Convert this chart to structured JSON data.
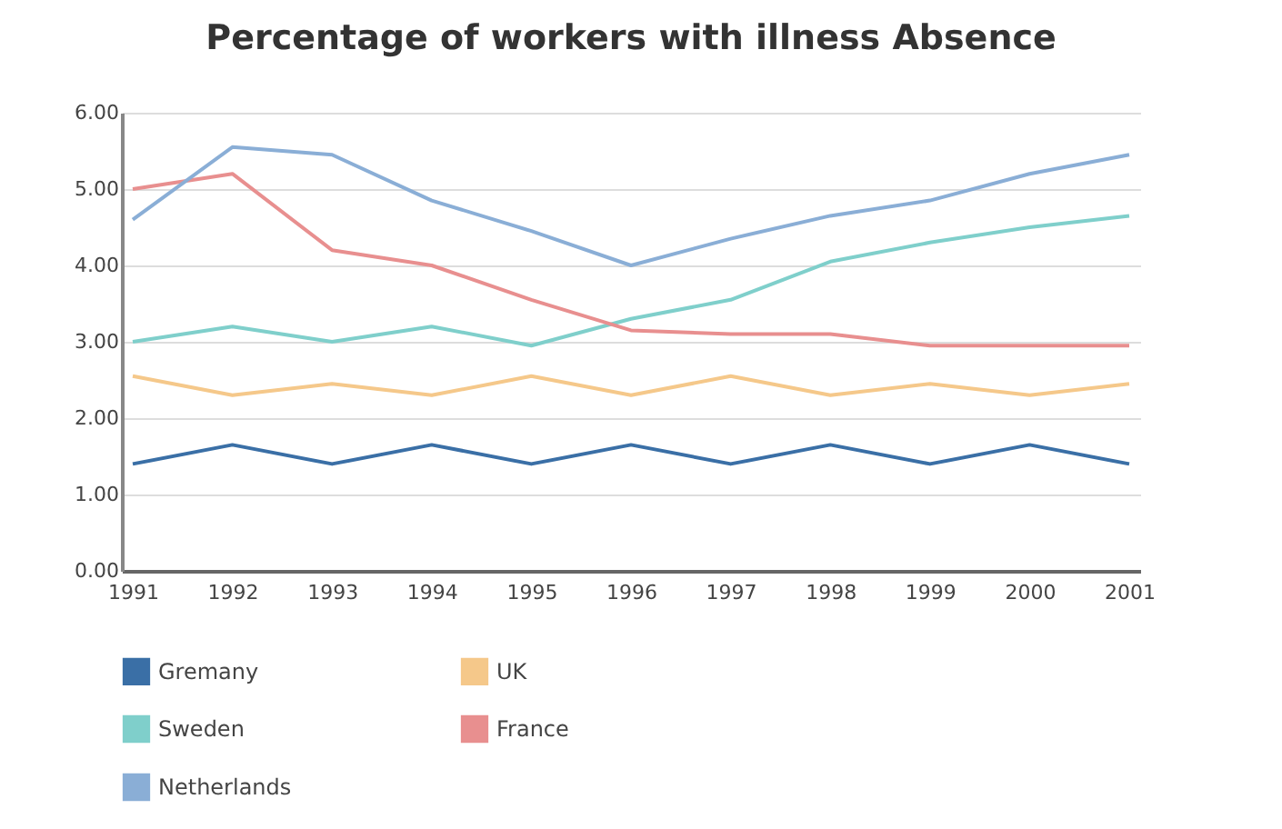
{
  "chart_data": {
    "type": "line",
    "title": "Percentage of workers with illness Absence",
    "categories": [
      "1991",
      "1992",
      "1993",
      "1994",
      "1995",
      "1996",
      "1997",
      "1998",
      "1999",
      "2000",
      "2001"
    ],
    "series": [
      {
        "name": "Gremany",
        "color": "#3a6fa6",
        "values": [
          1.4,
          1.65,
          1.4,
          1.65,
          1.4,
          1.65,
          1.4,
          1.65,
          1.4,
          1.65,
          1.4
        ]
      },
      {
        "name": "UK",
        "color": "#f5c88a",
        "values": [
          2.55,
          2.3,
          2.45,
          2.3,
          2.55,
          2.3,
          2.55,
          2.3,
          2.45,
          2.3,
          2.45
        ]
      },
      {
        "name": "Sweden",
        "color": "#7fcfcb",
        "values": [
          3.0,
          3.2,
          3.0,
          3.2,
          2.95,
          3.3,
          3.55,
          4.05,
          4.3,
          4.5,
          4.65
        ]
      },
      {
        "name": "France",
        "color": "#e88f8f",
        "values": [
          5.0,
          5.2,
          4.2,
          4.0,
          3.55,
          3.15,
          3.1,
          3.1,
          2.95,
          2.95,
          2.95
        ]
      },
      {
        "name": "Netherlands",
        "color": "#8aaed6",
        "values": [
          4.6,
          5.55,
          5.45,
          4.85,
          4.45,
          4.0,
          4.35,
          4.65,
          4.85,
          5.2,
          5.45
        ]
      }
    ],
    "ylim": [
      0,
      6
    ],
    "yticks": [
      {
        "value": 0,
        "label": "0.00"
      },
      {
        "value": 1,
        "label": "1.00"
      },
      {
        "value": 2,
        "label": "2.00"
      },
      {
        "value": 3,
        "label": "3.00"
      },
      {
        "value": 4,
        "label": "4.00"
      },
      {
        "value": 5,
        "label": "5.00"
      },
      {
        "value": 6,
        "label": "6.00"
      }
    ],
    "grid": "y",
    "legend": "bottom",
    "marker": "none",
    "line_style": "solid"
  }
}
